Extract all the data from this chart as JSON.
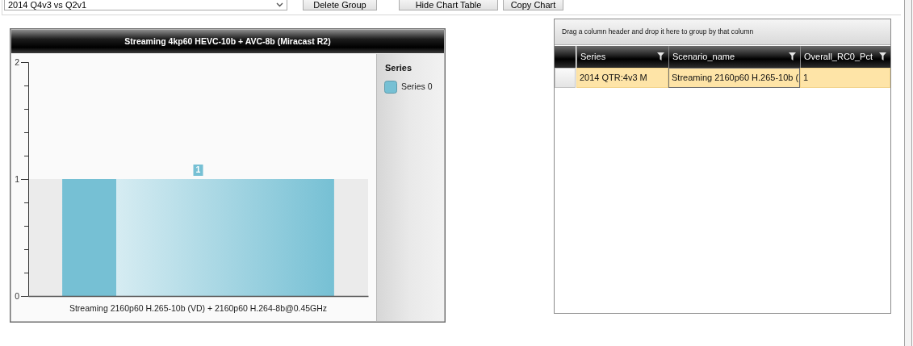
{
  "chart_data": [
    {
      "type": "other",
      "annotations": [
        "2014 Q4v3 vs Q2v1",
        "Delete Group",
        "Hide Chart Table",
        "Copy Chart"
      ]
    },
    {
      "type": "bar",
      "title": "Streaming 4kp60 HEVC-10b + AVC-8b (Miracast R2)",
      "categories": [
        "Streaming 2160p60 H.265-10b (VD) + 2160p60 H.264-8b@0.45GHz"
      ],
      "series": [
        {
          "name": "Series 0",
          "color": "#76c0d4",
          "values": [
            1
          ]
        }
      ],
      "ylim": [
        0,
        2
      ],
      "yticks": [
        0,
        {
          "value": 0.2,
          "label": null
        },
        {
          "value": 0.4,
          "label": null
        },
        {
          "value": 0.6,
          "label": null
        },
        {
          "value": 0.8,
          "label": null
        },
        1,
        {
          "value": 1.2,
          "label": null
        },
        {
          "value": 1.4,
          "label": null
        },
        {
          "value": 1.6,
          "label": null
        },
        {
          "value": 1.8,
          "label": null
        },
        2
      ],
      "bands": [
        {
          "axis": "y",
          "from": 0,
          "to": 1,
          "color": "#ebebeb"
        }
      ],
      "legend": "right",
      "legend_title": "Series",
      "data_labels": true
    },
    {
      "type": "other",
      "annotations": [
        "Drag a column header and drop it here to group by that column",
        "Series",
        "Scenario_name",
        "Overall_RC0_Pct",
        "2014 QTR:4v3 M",
        "Streaming 2160p60 H.265-10b (",
        "1"
      ]
    }
  ]
}
